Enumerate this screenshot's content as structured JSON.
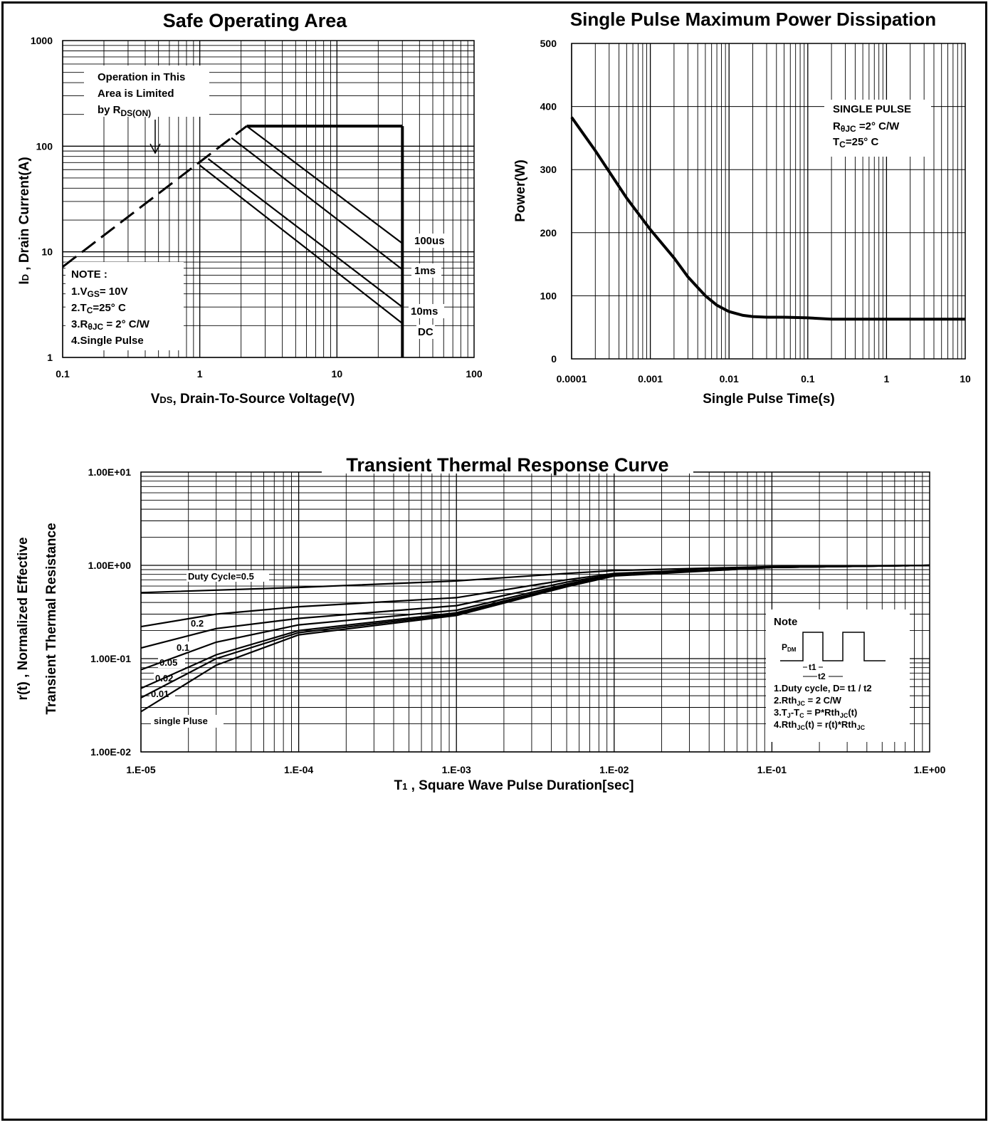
{
  "chart_data": [
    {
      "id": "soa",
      "type": "line",
      "title": "Safe Operating Area",
      "xlabel_main": "V",
      "xlabel_sub": "DS",
      "xlabel_rest": ", Drain-To-Source Voltage(V)",
      "ylabel_main": "I",
      "ylabel_sub": "D",
      "ylabel_rest": " , Drain Current(A)",
      "x_scale": "log",
      "y_scale": "log",
      "xlim": [
        0.1,
        100
      ],
      "ylim": [
        1,
        1000
      ],
      "x_ticks": [
        "0.1",
        "1",
        "10",
        "100"
      ],
      "y_ticks": [
        "1",
        "10",
        "100",
        "1000"
      ],
      "grid": true,
      "annotation_lines": [
        "Operation in This",
        "Area is Limited",
        "by R"
      ],
      "annotation_sub": "DS(ON)",
      "note_title": "NOTE :",
      "notes": [
        {
          "a": "1.V",
          "sub": "GS",
          "b": "= 10V"
        },
        {
          "a": "2.T",
          "sub": "C",
          "b": "=25° C"
        },
        {
          "a": "3.R",
          "sub": "θJC",
          "b": " = 2° C/W"
        },
        {
          "a": "4.Single Pulse",
          "sub": "",
          "b": ""
        }
      ],
      "rdson_limit": {
        "x": [
          0.1,
          2.2
        ],
        "y": [
          7.2,
          155
        ]
      },
      "series": [
        {
          "name": "100us",
          "x": [
            2.2,
            30
          ],
          "y": [
            155,
            12
          ]
        },
        {
          "name": "1ms",
          "x": [
            1.7,
            30
          ],
          "y": [
            120,
            6.8
          ]
        },
        {
          "name": "10ms",
          "x": [
            1.15,
            30
          ],
          "y": [
            76,
            3.0
          ]
        },
        {
          "name": "DC",
          "x": [
            1.0,
            30
          ],
          "y": [
            66,
            2.1
          ]
        }
      ],
      "current_limit": {
        "x": [
          2.2,
          30
        ],
        "y": [
          155,
          155
        ]
      },
      "voltage_limit": {
        "x": [
          30,
          30
        ],
        "y": [
          155,
          1
        ]
      }
    },
    {
      "id": "power",
      "type": "line",
      "title": "Single Pulse Maximum Power Dissipation",
      "xlabel": "Single Pulse Time(s)",
      "ylabel": "Power(W)",
      "x_scale": "log",
      "y_scale": "linear",
      "xlim": [
        0.0001,
        10
      ],
      "ylim": [
        0,
        500
      ],
      "x_ticks": [
        "0.0001",
        "0.001",
        "0.01",
        "0.1",
        "1",
        "10"
      ],
      "y_ticks": [
        "0",
        "100",
        "200",
        "300",
        "400",
        "500"
      ],
      "grid": true,
      "legend_lines": [
        {
          "a": "SINGLE PULSE",
          "sub": "",
          "b": ""
        },
        {
          "a": "R",
          "sub": "θJC",
          "b": " =2° C/W"
        },
        {
          "a": "T",
          "sub": "C",
          "b": "=25° C"
        }
      ],
      "series": [
        {
          "x": [
            0.0001,
            0.0002,
            0.0005,
            0.001,
            0.002,
            0.003,
            0.005,
            0.007,
            0.01,
            0.015,
            0.02,
            0.03,
            0.05,
            0.1,
            0.2,
            0.5,
            1,
            2,
            5,
            10
          ],
          "y": [
            383,
            330,
            255,
            205,
            160,
            130,
            100,
            85,
            75,
            69,
            67,
            66,
            66,
            65,
            63,
            63,
            63,
            63,
            63,
            63
          ]
        }
      ]
    },
    {
      "id": "transient",
      "type": "line",
      "title": "Transient Thermal Response Curve",
      "xlabel_main": "T",
      "xlabel_sub": "1",
      "xlabel_rest": " , Square Wave Pulse Duration[sec]",
      "ylabel_line1": "r(t) , Normalized Effective",
      "ylabel_line2": "Transient Thermal Resistance",
      "x_scale": "log",
      "y_scale": "log",
      "xlim": [
        1e-05,
        1
      ],
      "ylim": [
        0.01,
        10
      ],
      "x_ticks": [
        "1.E-05",
        "1.E-04",
        "1.E-03",
        "1.E-02",
        "1.E-01",
        "1.E+00"
      ],
      "y_ticks": [
        "1.00E-02",
        "1.00E-01",
        "1.00E+00",
        "1.00E+01"
      ],
      "grid": true,
      "series": [
        {
          "name": "Duty Cycle=0.5",
          "x": [
            1e-05,
            0.0001,
            0.001,
            0.005,
            0.01,
            0.1,
            1
          ],
          "y": [
            0.51,
            0.58,
            0.68,
            0.82,
            0.88,
            0.97,
            1.0
          ]
        },
        {
          "name": "0.2",
          "x": [
            1e-05,
            3e-05,
            0.0001,
            0.001,
            0.005,
            0.01,
            0.1,
            1
          ],
          "y": [
            0.22,
            0.3,
            0.36,
            0.45,
            0.7,
            0.82,
            0.96,
            1.0
          ]
        },
        {
          "name": "0.1",
          "x": [
            1e-05,
            3e-05,
            0.0001,
            0.001,
            0.005,
            0.01,
            0.1,
            1
          ],
          "y": [
            0.13,
            0.21,
            0.27,
            0.37,
            0.66,
            0.8,
            0.95,
            1.0
          ]
        },
        {
          "name": "0.05",
          "x": [
            1e-05,
            3e-05,
            0.0001,
            0.001,
            0.005,
            0.01,
            0.1,
            1
          ],
          "y": [
            0.076,
            0.15,
            0.23,
            0.33,
            0.63,
            0.79,
            0.95,
            1.0
          ]
        },
        {
          "name": "0.02",
          "x": [
            1e-05,
            3e-05,
            0.0001,
            0.001,
            0.005,
            0.01,
            0.1,
            1
          ],
          "y": [
            0.048,
            0.11,
            0.2,
            0.31,
            0.61,
            0.78,
            0.95,
            1.0
          ]
        },
        {
          "name": "0.01",
          "x": [
            1e-05,
            3e-05,
            0.0001,
            0.001,
            0.005,
            0.01,
            0.1,
            1
          ],
          "y": [
            0.038,
            0.1,
            0.19,
            0.3,
            0.6,
            0.78,
            0.95,
            1.0
          ]
        },
        {
          "name": "single Pluse",
          "x": [
            1e-05,
            3e-05,
            0.0001,
            0.001,
            0.005,
            0.01,
            0.1,
            1
          ],
          "y": [
            0.027,
            0.085,
            0.18,
            0.29,
            0.59,
            0.77,
            0.95,
            1.0
          ]
        }
      ],
      "note_title": "Note",
      "note_lines": [
        {
          "a": "1.Duty cycle, D= t1 / t2",
          "sub": "",
          "b": ""
        },
        {
          "a": "2.Rth",
          "sub": "JC",
          "b": " =   2 C/W"
        },
        {
          "a": "3.T",
          "sub": "J",
          "b": "-T",
          "sub2": "C",
          "c": " = P*Rth",
          "sub3": "JC",
          "d": "(t)"
        },
        {
          "a": "4.Rth",
          "sub": "JC",
          "b": "(t) = r(t)*Rth",
          "sub2": "JC"
        }
      ],
      "pulse_labels": {
        "pdm": "P",
        "pdm_sub": "DM",
        "t1": "t1",
        "t2": "t2"
      }
    }
  ]
}
